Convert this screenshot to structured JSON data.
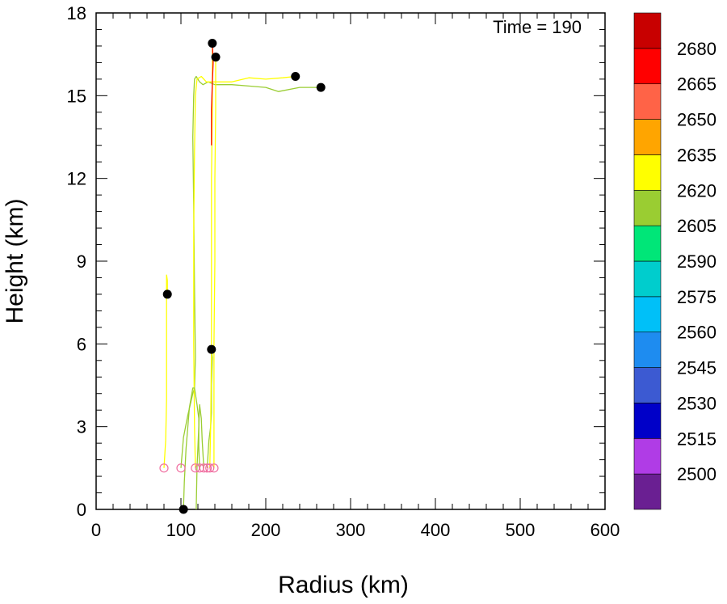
{
  "chart_data": {
    "type": "line",
    "title": "",
    "annotation": "Time = 190",
    "xlabel": "Radius (km)",
    "ylabel": "Height (km)",
    "xlim": [
      0,
      600
    ],
    "ylim": [
      0,
      18
    ],
    "xticks": [
      0,
      100,
      200,
      300,
      400,
      500,
      600
    ],
    "yticks": [
      0,
      3,
      6,
      9,
      12,
      15,
      18
    ],
    "grid": false,
    "colorbar": {
      "levels": [
        2500,
        2515,
        2530,
        2545,
        2560,
        2575,
        2590,
        2605,
        2620,
        2635,
        2650,
        2665,
        2680
      ],
      "colors": [
        "#6a1f92",
        "#b03ce6",
        "#0000c8",
        "#3c5ad2",
        "#1e8cf0",
        "#00c0f8",
        "#00cdcd",
        "#00e678",
        "#9acd32",
        "#ffff00",
        "#ffa500",
        "#ff6347",
        "#ff0000",
        "#c80000"
      ]
    },
    "series": [
      {
        "color": "#ffff00",
        "points": [
          [
            80,
            1.5
          ],
          [
            82,
            2.5
          ],
          [
            83,
            4.0
          ],
          [
            83,
            6.0
          ],
          [
            83,
            7.5
          ],
          [
            83,
            8.5
          ],
          [
            84,
            8.3
          ],
          [
            84,
            7.8
          ]
        ]
      },
      {
        "color": "#9acd32",
        "points": [
          [
            100,
            1.5
          ],
          [
            103,
            2.6
          ],
          [
            108,
            3.4
          ],
          [
            114,
            4.2
          ],
          [
            116,
            4.4
          ],
          [
            117,
            5.5
          ],
          [
            116,
            8.0
          ],
          [
            115,
            11.0
          ],
          [
            114,
            13.5
          ],
          [
            115,
            15.0
          ],
          [
            116,
            15.6
          ],
          [
            118,
            15.7
          ],
          [
            122,
            15.5
          ],
          [
            126,
            15.4
          ],
          [
            132,
            15.5
          ],
          [
            140,
            15.4
          ],
          [
            160,
            15.4
          ],
          [
            180,
            15.35
          ],
          [
            200,
            15.3
          ],
          [
            215,
            15.15
          ],
          [
            240,
            15.3
          ],
          [
            265,
            15.3
          ]
        ]
      },
      {
        "color": "#ffff00",
        "points": [
          [
            117,
            1.5
          ],
          [
            116,
            3.0
          ],
          [
            115,
            6.0
          ],
          [
            115,
            10.0
          ],
          [
            116,
            13.0
          ],
          [
            117,
            15.0
          ],
          [
            119,
            15.6
          ],
          [
            124,
            15.7
          ],
          [
            130,
            15.5
          ],
          [
            140,
            15.5
          ],
          [
            160,
            15.5
          ],
          [
            180,
            15.65
          ],
          [
            200,
            15.6
          ],
          [
            220,
            15.65
          ],
          [
            235,
            15.7
          ]
        ]
      },
      {
        "color": "#9acd32",
        "points": [
          [
            122,
            1.5
          ],
          [
            121,
            2.3
          ],
          [
            121,
            3.3
          ],
          [
            119,
            3.8
          ],
          [
            116,
            4.4
          ],
          [
            114,
            4.4
          ],
          [
            110,
            3.7
          ],
          [
            106,
            2.2
          ],
          [
            104,
            1.0
          ],
          [
            103,
            0.0
          ]
        ]
      },
      {
        "color": "#9acd32",
        "points": [
          [
            127,
            1.5
          ],
          [
            125,
            2.5
          ],
          [
            124,
            3.3
          ],
          [
            122,
            3.8
          ],
          [
            121,
            3.0
          ],
          [
            119,
            1.5
          ],
          [
            118,
            0.0
          ]
        ]
      },
      {
        "color": "#9acd32",
        "points": [
          [
            131,
            1.5
          ],
          [
            133,
            2.5
          ],
          [
            135,
            3.0
          ],
          [
            136,
            3.5
          ],
          [
            136,
            4.5
          ],
          [
            137,
            5.5
          ],
          [
            136,
            5.8
          ]
        ]
      },
      {
        "color": "#ffff00",
        "points": [
          [
            134,
            1.5
          ],
          [
            135,
            3.0
          ],
          [
            136,
            6.0
          ],
          [
            136,
            9.0
          ],
          [
            136,
            12.0
          ],
          [
            137,
            14.5
          ],
          [
            137,
            16.2
          ],
          [
            137,
            16.9
          ]
        ]
      },
      {
        "color": "#ff0000",
        "points": [
          [
            136,
            13.2
          ],
          [
            136,
            14.5
          ],
          [
            137,
            15.5
          ],
          [
            138,
            16.2
          ],
          [
            137,
            16.9
          ]
        ]
      },
      {
        "color": "#ffff00",
        "points": [
          [
            139,
            1.5
          ],
          [
            139,
            3.0
          ],
          [
            139,
            6.0
          ],
          [
            140,
            9.0
          ],
          [
            140,
            12.0
          ],
          [
            141,
            14.5
          ],
          [
            141,
            15.8
          ],
          [
            141,
            16.4
          ]
        ]
      }
    ],
    "start_points": [
      [
        80,
        1.5
      ],
      [
        100,
        1.5
      ],
      [
        117,
        1.5
      ],
      [
        122,
        1.5
      ],
      [
        127,
        1.5
      ],
      [
        131,
        1.5
      ],
      [
        134,
        1.5
      ],
      [
        139,
        1.5
      ]
    ],
    "end_points": [
      [
        84,
        7.8
      ],
      [
        103,
        0.0
      ],
      [
        136,
        5.8
      ],
      [
        137,
        16.9
      ],
      [
        141,
        16.4
      ],
      [
        235,
        15.7
      ],
      [
        265,
        15.3
      ]
    ]
  }
}
